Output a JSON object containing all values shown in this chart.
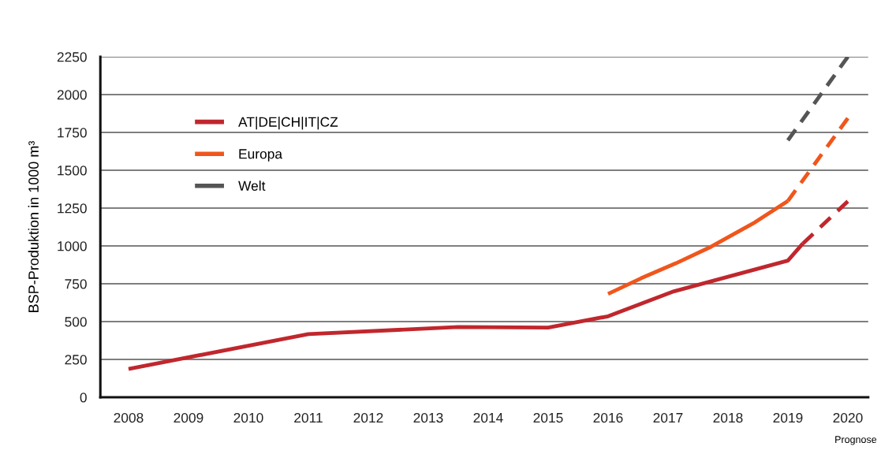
{
  "chart_data": {
    "type": "line",
    "ylabel": "BSP-Produktion in 1000 m³",
    "xlim": [
      2007.53,
      2020.34
    ],
    "xticks": [
      2008,
      2009,
      2010,
      2011,
      2012,
      2013,
      2014,
      2015,
      2016,
      2017,
      2018,
      2019,
      2020
    ],
    "ylim": [
      0,
      2250
    ],
    "yticks": [
      0,
      250,
      500,
      750,
      1000,
      1250,
      1500,
      1750,
      2000,
      2250
    ],
    "grid": "y",
    "legend": "top left",
    "marker": "none",
    "annotations": [
      "Prognose"
    ],
    "series": [
      {
        "name": "AT|DE|CH|IT|CZ",
        "color": "#c0272d",
        "line_style": "solid",
        "x": [
          2008,
          2011,
          2013.5,
          2015,
          2016,
          2017.1,
          2019,
          2019.25
        ],
        "values": [
          187,
          417,
          464,
          460,
          535,
          700,
          903,
          1016
        ]
      },
      {
        "color": "#c0272d",
        "line_style": "dashed",
        "x": [
          2019.25,
          2020
        ],
        "values": [
          1016,
          1295
        ]
      },
      {
        "name": "Europa",
        "color": "#f0561c",
        "line_style": "solid",
        "x": [
          2016,
          2016.55,
          2017.13,
          2017.72,
          2018.45,
          2019
        ],
        "values": [
          683,
          786,
          885,
          995,
          1156,
          1297
        ]
      },
      {
        "color": "#f0561c",
        "line_style": "dashed",
        "x": [
          2019,
          2020
        ],
        "values": [
          1297,
          1844
        ]
      },
      {
        "name": "Welt",
        "color": "#555555",
        "line_style": "dashed",
        "x": [
          2019,
          2020
        ],
        "values": [
          1698,
          2250
        ]
      }
    ]
  }
}
